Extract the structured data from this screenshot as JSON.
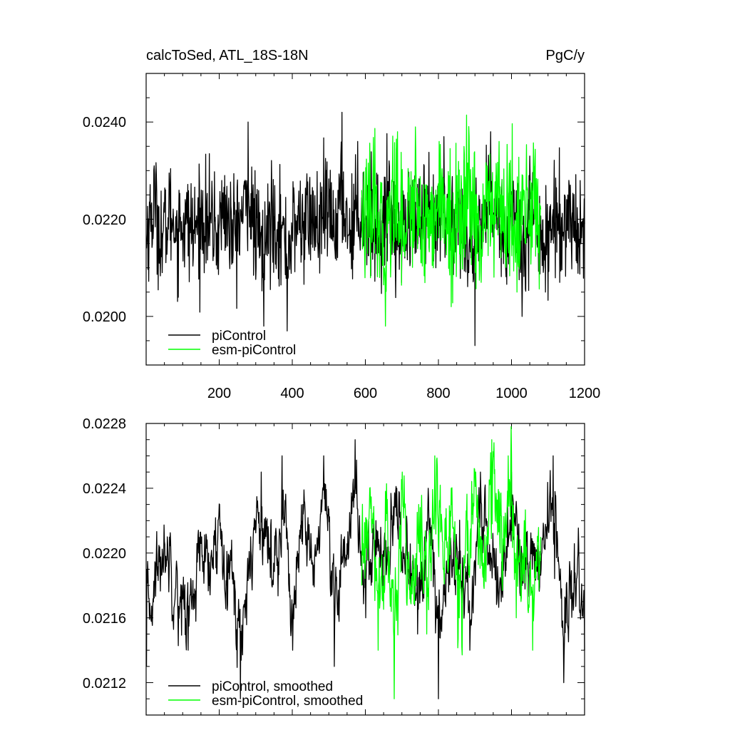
{
  "chart_data": [
    {
      "type": "line",
      "title": "calcToSed, ATL_18S-18N",
      "units": "PgC/y",
      "xlim": [
        0,
        1200
      ],
      "ylim": [
        0.019,
        0.025
      ],
      "xticks": [
        200,
        400,
        600,
        800,
        1000,
        1200
      ],
      "xtick_labels": [
        "200",
        "400",
        "600",
        "800",
        "1000",
        "1200"
      ],
      "yticks": [
        0.02,
        0.022,
        0.024
      ],
      "ytick_labels": [
        "0.0200",
        "0.0220",
        "0.0240"
      ],
      "legend_position": "bottom-left",
      "series": [
        {
          "name": "piControl",
          "color": "#000000",
          "x_start": 1,
          "x_end": 1200,
          "mean": 0.0219,
          "noise": 0.00055,
          "values_sample": [
            0.0214,
            0.0231,
            0.0209,
            0.0225,
            0.0218,
            0.0223,
            0.0212,
            0.0226,
            0.022,
            0.0216,
            0.0229,
            0.0211,
            0.0222,
            0.024,
            0.021,
            0.0198,
            0.0226,
            0.0218,
            0.0197,
            0.0221,
            0.0219,
            0.0225,
            0.0214,
            0.023,
            0.0216,
            0.0242,
            0.0213,
            0.0236,
            0.022,
            0.0218,
            0.0215,
            0.0232,
            0.022,
            0.0212,
            0.0228,
            0.0217,
            0.0223,
            0.021,
            0.0237,
            0.0219,
            0.0225,
            0.0214,
            0.0194,
            0.0222,
            0.0238,
            0.0221,
            0.0215,
            0.0226,
            0.02,
            0.0233,
            0.0219,
            0.0205,
            0.0222,
            0.0216,
            0.0228,
            0.0211,
            0.0219
          ]
        },
        {
          "name": "esm-piControl",
          "color": "#00ff00",
          "x_start": 590,
          "x_end": 1080,
          "mean": 0.0221,
          "noise": 0.00065,
          "values_sample": [
            0.0226,
            0.0213,
            0.023,
            0.0208,
            0.0198,
            0.0228,
            0.0238,
            0.0215,
            0.0222,
            0.0239,
            0.0211,
            0.0225,
            0.021,
            0.0236,
            0.0218,
            0.0202,
            0.0229,
            0.0214,
            0.0237,
            0.022,
            0.0207,
            0.0231,
            0.0219,
            0.0236,
            0.0213,
            0.0224,
            0.0205,
            0.0229,
            0.0217,
            0.0231,
            0.0222
          ]
        }
      ]
    },
    {
      "type": "line",
      "title": "",
      "xlim": [
        0,
        1200
      ],
      "ylim": [
        0.021,
        0.0228
      ],
      "yticks": [
        0.0212,
        0.0216,
        0.022,
        0.0224,
        0.0228
      ],
      "ytick_labels": [
        "0.0212",
        "0.0216",
        "0.0220",
        "0.0224",
        "0.0228"
      ],
      "legend_position": "bottom-left",
      "series": [
        {
          "name": "piControl, smoothed",
          "color": "#000000",
          "x_start": 1,
          "x_end": 1200,
          "mean": 0.02195,
          "noise": 0.00022,
          "values_sample": [
            0.0213,
            0.0219,
            0.0221,
            0.0216,
            0.0214,
            0.022,
            0.0218,
            0.0223,
            0.0219,
            0.0211,
            0.0221,
            0.0225,
            0.0218,
            0.0226,
            0.0214,
            0.0223,
            0.0219,
            0.0226,
            0.0213,
            0.0221,
            0.0227,
            0.0216,
            0.0222,
            0.0219,
            0.0224,
            0.022,
            0.0215,
            0.0224,
            0.0211,
            0.0221,
            0.0219,
            0.0214,
            0.0225,
            0.022,
            0.0217,
            0.0225,
            0.0218,
            0.0219,
            0.0221,
            0.0226,
            0.0212,
            0.0218,
            0.0214
          ]
        },
        {
          "name": "esm-piControl, smoothed",
          "color": "#00ff00",
          "x_start": 590,
          "x_end": 1080,
          "mean": 0.02205,
          "noise": 0.00028,
          "values_sample": [
            0.0218,
            0.0224,
            0.0214,
            0.0222,
            0.0211,
            0.0225,
            0.0217,
            0.0223,
            0.0215,
            0.0226,
            0.0219,
            0.0224,
            0.0216,
            0.0222,
            0.0225,
            0.0218,
            0.0227,
            0.022,
            0.0226,
            0.0216,
            0.0222,
            0.0214,
            0.0221
          ]
        }
      ]
    }
  ]
}
